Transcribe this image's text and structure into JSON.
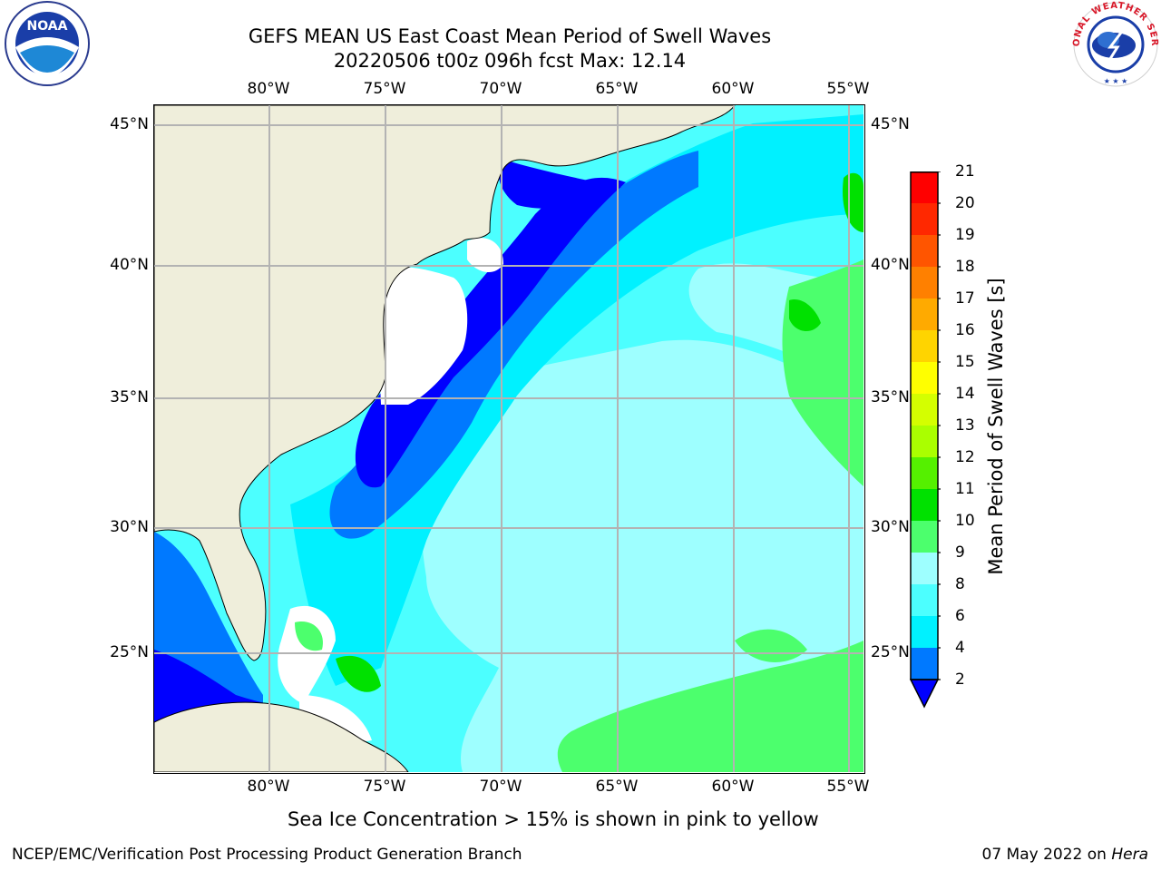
{
  "header": {
    "title_line1": "GEFS MEAN US East Coast Mean Period of Swell Waves",
    "title_line2": "20220506 t00z 096h fcst   Max: 12.14"
  },
  "map": {
    "lon_labels": [
      "80°W",
      "75°W",
      "70°W",
      "65°W",
      "60°W",
      "55°W"
    ],
    "lat_labels": [
      "45°N",
      "40°N",
      "35°N",
      "30°N",
      "25°N"
    ],
    "colors": {
      "land": "#efeedb",
      "water_deep_blue": "#0000ff",
      "water_blue": "#0079ff",
      "water_cyan": "#00f1ff",
      "water_light_cyan": "#4cffff",
      "water_pale_cyan": "#9effff",
      "water_green": "#4cff6d",
      "water_bright_green": "#00e100",
      "no_data": "#ffffff",
      "grid": "#b3b3b3"
    }
  },
  "colorbar": {
    "label": "Mean Period of Swell Waves [s]",
    "ticks": [
      "21",
      "20",
      "19",
      "18",
      "17",
      "16",
      "15",
      "14",
      "13",
      "12",
      "11",
      "10",
      "9",
      "8",
      "6",
      "4",
      "2"
    ],
    "colors": [
      "#ff0000",
      "#ff2800",
      "#ff5500",
      "#ff8000",
      "#ffaa00",
      "#ffd400",
      "#ffff00",
      "#d4ff00",
      "#aaff00",
      "#55f000",
      "#00e100",
      "#4cff6d",
      "#9effff",
      "#4cffff",
      "#00f1ff",
      "#0079ff",
      "#0000ff"
    ]
  },
  "footer": {
    "note": "Sea Ice Concentration > 15% is shown in pink to yellow",
    "credit": "NCEP/EMC/Verification Post Processing Product Generation Branch",
    "date": "07 May 2022 on ",
    "host": "Hera"
  },
  "logos": {
    "left": "NOAA",
    "right": "NATIONAL WEATHER SERVICE"
  }
}
